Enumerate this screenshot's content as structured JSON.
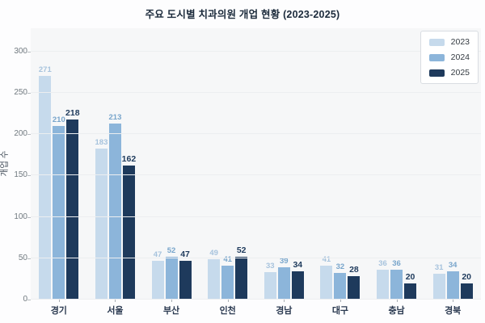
{
  "chart_data": {
    "type": "bar",
    "title": "주요 도시별 치과의원 개업 현황 (2023-2025)",
    "xlabel": "",
    "ylabel": "개업 수",
    "ylim": [
      0,
      300
    ],
    "yticks": [
      0,
      50,
      100,
      150,
      200,
      250,
      300
    ],
    "grid": true,
    "legend_position": "top-right",
    "categories": [
      "경기",
      "서울",
      "부산",
      "인천",
      "경남",
      "대구",
      "충남",
      "경북"
    ],
    "series": [
      {
        "name": "2023",
        "color": "#c6daec",
        "label_color": "#a7c3dd",
        "values": [
          271,
          183,
          47,
          49,
          33,
          41,
          36,
          31
        ]
      },
      {
        "name": "2024",
        "color": "#8cb5da",
        "label_color": "#78a5cb",
        "values": [
          210,
          213,
          52,
          41,
          39,
          32,
          36,
          34
        ]
      },
      {
        "name": "2025",
        "color": "#1e3a5c",
        "label_color": "#1e3a5c",
        "emphasized": true,
        "values": [
          218,
          162,
          47,
          52,
          34,
          28,
          20,
          20
        ]
      }
    ]
  },
  "colors": {
    "plot_background": "#f6f7f8",
    "figure_background": "#fdfdfe",
    "gridline": "#eceef0",
    "title_text": "#1b2a3b",
    "axis_tick_text": "#70797f",
    "x_label_text": "#2a3950"
  }
}
